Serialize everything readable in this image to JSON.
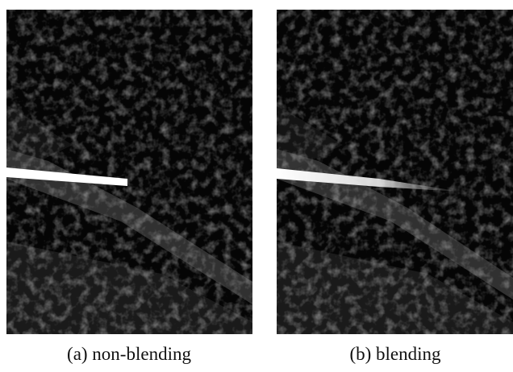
{
  "figure": {
    "panels": [
      {
        "caption": "(a) non-blending"
      },
      {
        "caption": "(b) blending"
      }
    ]
  }
}
